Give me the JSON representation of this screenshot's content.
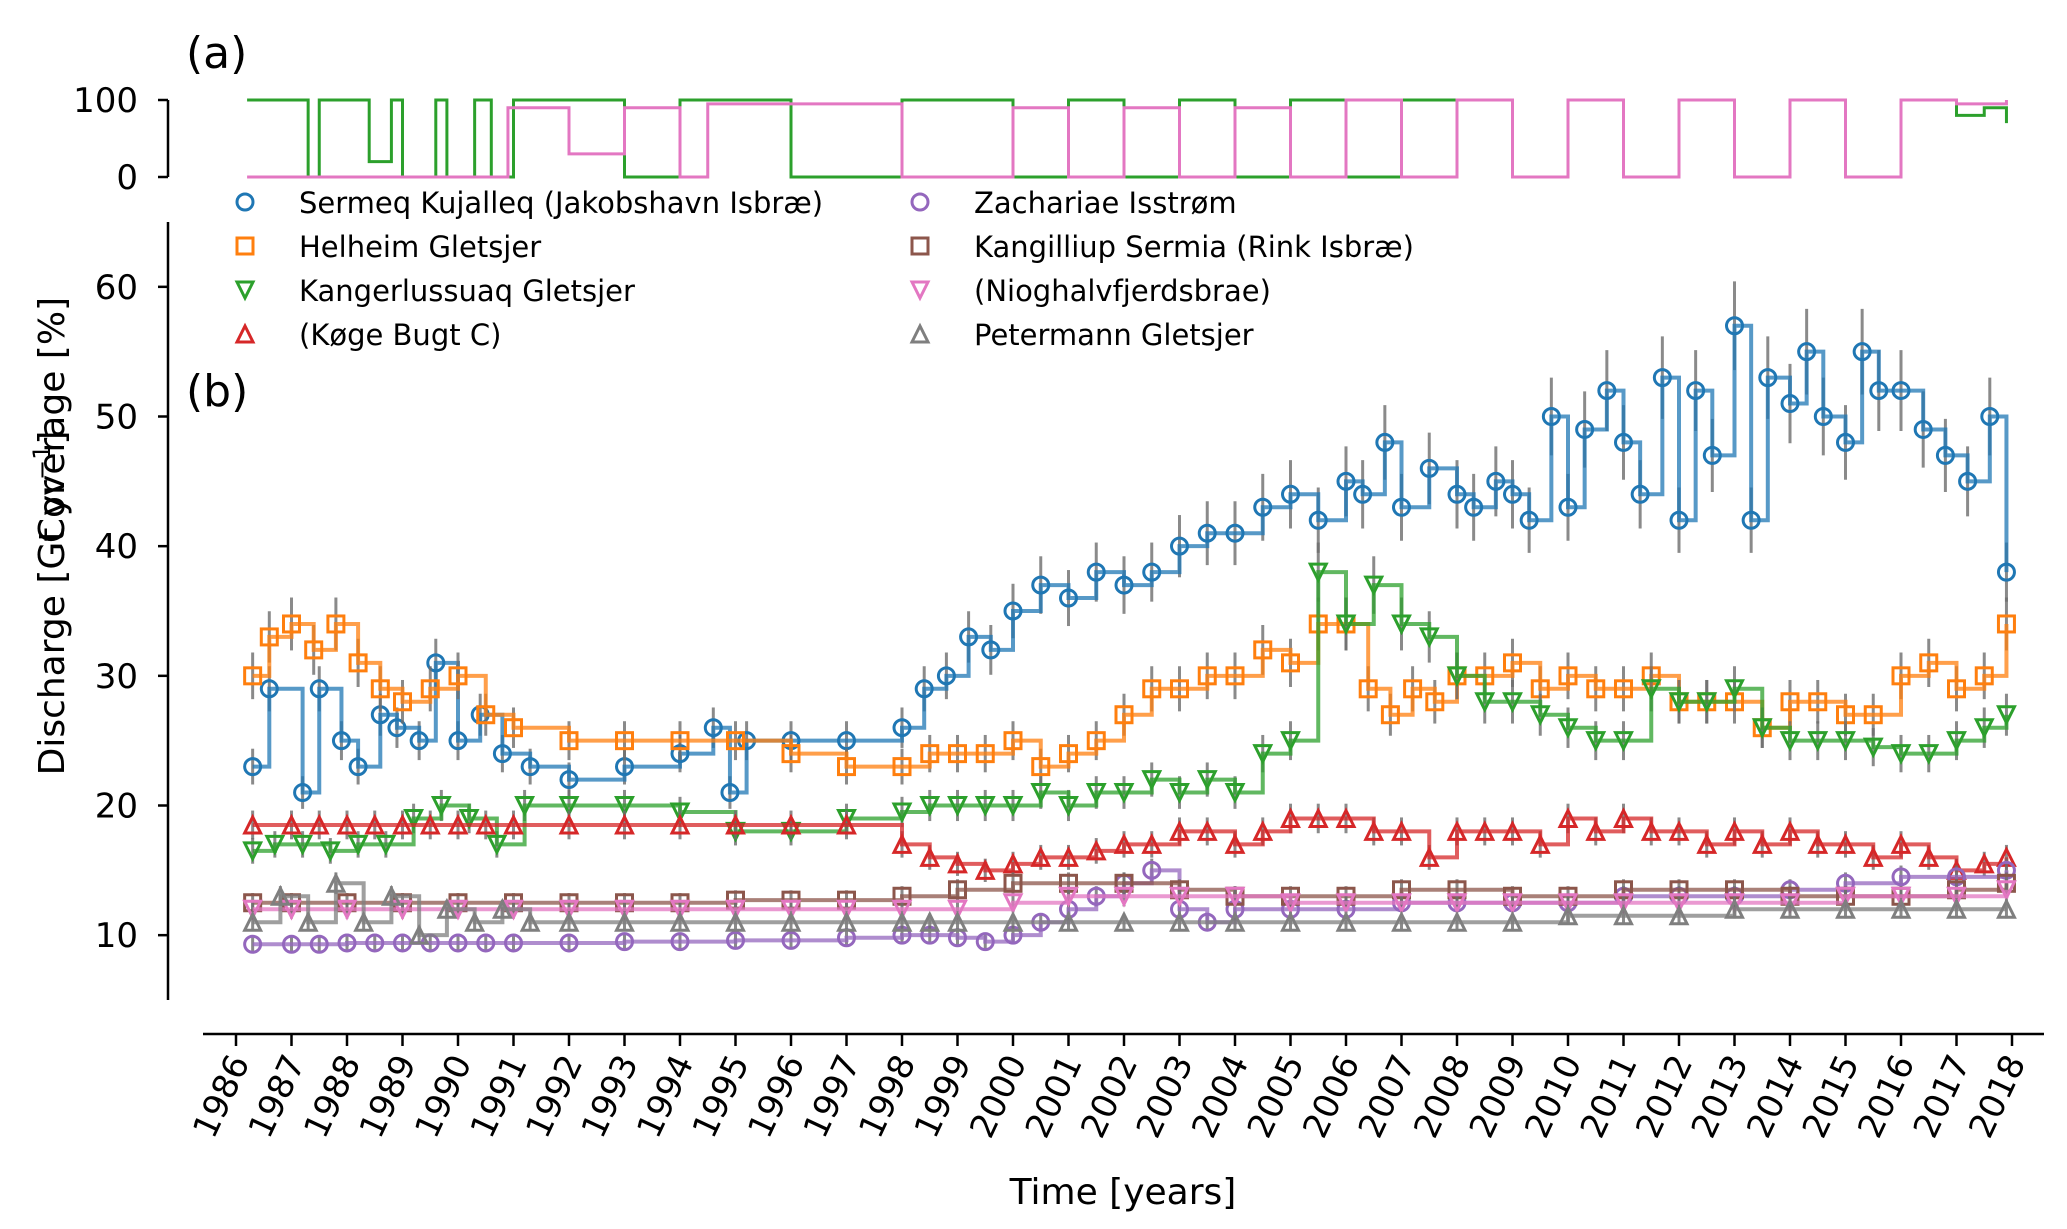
{
  "chart_data": [
    {
      "type": "line",
      "panel_label": "(a)",
      "ylabel": "Coverage [%]",
      "yticks": [
        0,
        100
      ],
      "ylim": [
        0,
        100
      ],
      "xlim": [
        1986,
        2018
      ],
      "series": [
        {
          "name": "Coverage A",
          "color": "#2ca02c",
          "x": [
            1986.2,
            1986.3,
            1987.3,
            1987.5,
            1988.3,
            1988.4,
            1988.8,
            1989.0,
            1989.6,
            1989.8,
            1990.3,
            1990.6,
            1991.0,
            1992.0,
            1993.0,
            1994.0,
            1995.0,
            1996.0,
            1998.0,
            2000.0,
            2001.0,
            2002.0,
            2003.0,
            2004.0,
            2005.0,
            2006.0,
            2007.0,
            2008.0,
            2009.0,
            2010.0,
            2011.0,
            2012.0,
            2013.0,
            2014.0,
            2015.0,
            2016.0,
            2017.0,
            2017.5,
            2017.9
          ],
          "y": [
            100,
            100,
            0,
            100,
            100,
            20,
            100,
            0,
            100,
            0,
            100,
            0,
            100,
            100,
            0,
            100,
            100,
            0,
            100,
            0,
            100,
            0,
            100,
            0,
            100,
            0,
            100,
            100,
            0,
            100,
            0,
            100,
            0,
            100,
            0,
            100,
            80,
            90,
            70
          ]
        },
        {
          "name": "Coverage B",
          "color": "#e377c2",
          "x": [
            1986.2,
            1990.9,
            1992.0,
            1993.0,
            1994.0,
            1994.5,
            1998.0,
            1999.0,
            2000.0,
            2001.0,
            2002.0,
            2003.0,
            2004.0,
            2005.0,
            2006.0,
            2007.0,
            2008.0,
            2009.0,
            2010.0,
            2011.0,
            2012.0,
            2013.0,
            2014.0,
            2015.0,
            2016.0,
            2017.0,
            2017.9
          ],
          "y": [
            0,
            90,
            30,
            90,
            0,
            95,
            0,
            0,
            90,
            0,
            90,
            0,
            90,
            0,
            100,
            0,
            100,
            0,
            100,
            0,
            100,
            0,
            100,
            0,
            100,
            95,
            100
          ]
        }
      ]
    },
    {
      "type": "line",
      "panel_label": "(b)",
      "title": "",
      "xlabel": "Time [years]",
      "ylabel": "Discharge [Gt yr",
      "ylabel_exponent": "−1",
      "ylabel_close": "]",
      "ylim": [
        5,
        65
      ],
      "yticks": [
        10,
        20,
        30,
        40,
        50,
        60
      ],
      "xlim": [
        1986,
        2018
      ],
      "xtick_labels": [
        "1986",
        "1987",
        "1988",
        "1989",
        "1990",
        "1991",
        "1992",
        "1993",
        "1994",
        "1995",
        "1996",
        "1997",
        "1998",
        "1999",
        "2000",
        "2001",
        "2002",
        "2003",
        "2004",
        "2005",
        "2006",
        "2007",
        "2008",
        "2009",
        "2010",
        "2011",
        "2012",
        "2013",
        "2014",
        "2015",
        "2016",
        "2017",
        "2018"
      ],
      "legend_position": "top",
      "series": [
        {
          "name": "Sermeq Kujalleq (Jakobshavn Isbræ)",
          "color": "#1f77b4",
          "marker": "circle",
          "x": [
            1986.3,
            1986.6,
            1987.2,
            1987.5,
            1987.9,
            1988.2,
            1988.6,
            1988.9,
            1989.3,
            1989.6,
            1990.0,
            1990.4,
            1990.8,
            1991.3,
            1992.0,
            1993.0,
            1994.0,
            1994.6,
            1994.9,
            1995.2,
            1996.0,
            1997.0,
            1998.0,
            1998.4,
            1998.8,
            1999.2,
            1999.6,
            2000.0,
            2000.5,
            2001.0,
            2001.5,
            2002.0,
            2002.5,
            2003.0,
            2003.5,
            2004.0,
            2004.5,
            2005.0,
            2005.5,
            2006.0,
            2006.3,
            2006.7,
            2007.0,
            2007.5,
            2008.0,
            2008.3,
            2008.7,
            2009.0,
            2009.3,
            2009.7,
            2010.0,
            2010.3,
            2010.7,
            2011.0,
            2011.3,
            2011.7,
            2012.0,
            2012.3,
            2012.6,
            2013.0,
            2013.3,
            2013.6,
            2014.0,
            2014.3,
            2014.6,
            2015.0,
            2015.3,
            2015.6,
            2016.0,
            2016.4,
            2016.8,
            2017.2,
            2017.6,
            2017.9
          ],
          "y": [
            23,
            29,
            21,
            29,
            25,
            23,
            27,
            26,
            25,
            31,
            25,
            27,
            24,
            23,
            22,
            23,
            24,
            26,
            21,
            25,
            25,
            25,
            26,
            29,
            30,
            33,
            32,
            35,
            37,
            36,
            38,
            37,
            38,
            40,
            41,
            41,
            43,
            44,
            42,
            45,
            44,
            48,
            43,
            46,
            44,
            43,
            45,
            44,
            42,
            50,
            43,
            49,
            52,
            48,
            44,
            53,
            42,
            52,
            47,
            57,
            42,
            53,
            51,
            55,
            50,
            48,
            55,
            52,
            52,
            49,
            47,
            45,
            50,
            38
          ]
        },
        {
          "name": "Helheim Gletsjer",
          "color": "#ff7f0e",
          "marker": "square",
          "x": [
            1986.3,
            1986.6,
            1987.0,
            1987.4,
            1987.8,
            1988.2,
            1988.6,
            1989.0,
            1989.5,
            1990.0,
            1990.5,
            1991.0,
            1992.0,
            1993.0,
            1994.0,
            1995.0,
            1996.0,
            1997.0,
            1998.0,
            1998.5,
            1999.0,
            1999.5,
            2000.0,
            2000.5,
            2001.0,
            2001.5,
            2002.0,
            2002.5,
            2003.0,
            2003.5,
            2004.0,
            2004.5,
            2005.0,
            2005.5,
            2006.0,
            2006.4,
            2006.8,
            2007.2,
            2007.6,
            2008.0,
            2008.5,
            2009.0,
            2009.5,
            2010.0,
            2010.5,
            2011.0,
            2011.5,
            2012.0,
            2012.5,
            2013.0,
            2013.5,
            2014.0,
            2014.5,
            2015.0,
            2015.5,
            2016.0,
            2016.5,
            2017.0,
            2017.5,
            2017.9
          ],
          "y": [
            30,
            33,
            34,
            32,
            34,
            31,
            29,
            28,
            29,
            30,
            27,
            26,
            25,
            25,
            25,
            25,
            24,
            23,
            23,
            24,
            24,
            24,
            25,
            23,
            24,
            25,
            27,
            29,
            29,
            30,
            30,
            32,
            31,
            34,
            34,
            29,
            27,
            29,
            28,
            30,
            30,
            31,
            29,
            30,
            29,
            29,
            30,
            28,
            28,
            28,
            26,
            28,
            28,
            27,
            27,
            30,
            31,
            29,
            30,
            34
          ]
        },
        {
          "name": "Kangerlussuaq Gletsjer",
          "color": "#2ca02c",
          "marker": "triangle-down",
          "x": [
            1986.3,
            1986.7,
            1987.2,
            1987.7,
            1988.2,
            1988.7,
            1989.2,
            1989.7,
            1990.2,
            1990.7,
            1991.2,
            1992.0,
            1993.0,
            1994.0,
            1995.0,
            1996.0,
            1997.0,
            1998.0,
            1998.5,
            1999.0,
            1999.5,
            2000.0,
            2000.5,
            2001.0,
            2001.5,
            2002.0,
            2002.5,
            2003.0,
            2003.5,
            2004.0,
            2004.5,
            2005.0,
            2005.5,
            2006.0,
            2006.5,
            2007.0,
            2007.5,
            2008.0,
            2008.5,
            2009.0,
            2009.5,
            2010.0,
            2010.5,
            2011.0,
            2011.5,
            2012.0,
            2012.5,
            2013.0,
            2013.5,
            2014.0,
            2014.5,
            2015.0,
            2015.5,
            2016.0,
            2016.5,
            2017.0,
            2017.5,
            2017.9
          ],
          "y": [
            16.5,
            17,
            17,
            16.5,
            17,
            17,
            19,
            20,
            19,
            17,
            20,
            20,
            20,
            19.5,
            18,
            18,
            19,
            19.5,
            20,
            20,
            20,
            20,
            21,
            20,
            21,
            21,
            22,
            21,
            22,
            21,
            24,
            25,
            38,
            34,
            37,
            34,
            33,
            30,
            28,
            28,
            27,
            26,
            25,
            25,
            29,
            28,
            28,
            29,
            26,
            25,
            25,
            25,
            24.5,
            24,
            24,
            25,
            26,
            27
          ]
        },
        {
          "name": "(Køge Bugt C)",
          "color": "#d62728",
          "marker": "triangle-up",
          "x": [
            1986.3,
            1987.0,
            1987.5,
            1988.0,
            1988.5,
            1989.0,
            1989.5,
            1990.0,
            1990.5,
            1991.0,
            1992.0,
            1993.0,
            1994.0,
            1995.0,
            1996.0,
            1997.0,
            1998.0,
            1998.5,
            1999.0,
            1999.5,
            2000.0,
            2000.5,
            2001.0,
            2001.5,
            2002.0,
            2002.5,
            2003.0,
            2003.5,
            2004.0,
            2004.5,
            2005.0,
            2005.5,
            2006.0,
            2006.5,
            2007.0,
            2007.5,
            2008.0,
            2008.5,
            2009.0,
            2009.5,
            2010.0,
            2010.5,
            2011.0,
            2011.5,
            2012.0,
            2012.5,
            2013.0,
            2013.5,
            2014.0,
            2014.5,
            2015.0,
            2015.5,
            2016.0,
            2016.5,
            2017.0,
            2017.5,
            2017.9
          ],
          "y": [
            18.5,
            18.5,
            18.5,
            18.5,
            18.5,
            18.5,
            18.5,
            18.5,
            18.5,
            18.5,
            18.5,
            18.5,
            18.5,
            18.5,
            18.5,
            18.5,
            17,
            16,
            15.5,
            15,
            15.5,
            16,
            16,
            16.5,
            17,
            17,
            18,
            18,
            17,
            18,
            19,
            19,
            19,
            18,
            18,
            16,
            18,
            18,
            18,
            17,
            19,
            18,
            19,
            18,
            18,
            17,
            18,
            17,
            18,
            17,
            17,
            16,
            17,
            16,
            15,
            15.5,
            16
          ]
        },
        {
          "name": "Zachariae Isstrøm",
          "color": "#9467bd",
          "marker": "circle",
          "x": [
            1986.3,
            1987.0,
            1987.5,
            1988.0,
            1988.5,
            1989.0,
            1989.5,
            1990.0,
            1990.5,
            1991.0,
            1992.0,
            1993.0,
            1994.0,
            1995.0,
            1996.0,
            1997.0,
            1998.0,
            1998.5,
            1999.0,
            1999.5,
            2000.0,
            2000.5,
            2001.0,
            2001.5,
            2002.0,
            2002.5,
            2003.0,
            2003.5,
            2004.0,
            2005.0,
            2006.0,
            2007.0,
            2008.0,
            2009.0,
            2010.0,
            2011.0,
            2012.0,
            2013.0,
            2014.0,
            2015.0,
            2016.0,
            2017.0,
            2017.9
          ],
          "y": [
            9.3,
            9.3,
            9.3,
            9.4,
            9.4,
            9.4,
            9.4,
            9.4,
            9.4,
            9.4,
            9.4,
            9.5,
            9.5,
            9.6,
            9.6,
            9.8,
            10,
            10,
            9.8,
            9.5,
            10,
            11,
            12,
            13,
            14,
            15,
            12,
            11,
            12,
            12,
            12,
            12.5,
            12.5,
            12.5,
            12.5,
            13,
            13,
            13,
            13.5,
            14,
            14.5,
            14.5,
            15
          ]
        },
        {
          "name": "Kangilliup Sermia (Rink Isbræ)",
          "color": "#8c564b",
          "marker": "square",
          "x": [
            1986.3,
            1987.0,
            1988.0,
            1989.0,
            1990.0,
            1991.0,
            1992.0,
            1993.0,
            1994.0,
            1995.0,
            1996.0,
            1997.0,
            1998.0,
            1999.0,
            2000.0,
            2001.0,
            2002.0,
            2003.0,
            2004.0,
            2005.0,
            2006.0,
            2007.0,
            2008.0,
            2009.0,
            2010.0,
            2011.0,
            2012.0,
            2013.0,
            2014.0,
            2015.0,
            2016.0,
            2017.0,
            2017.9
          ],
          "y": [
            12.5,
            12.5,
            12.5,
            12.5,
            12.5,
            12.5,
            12.5,
            12.5,
            12.5,
            12.7,
            12.7,
            12.7,
            13,
            13.5,
            14,
            14,
            14,
            13.5,
            13,
            13,
            13,
            13.5,
            13.5,
            13,
            13,
            13.5,
            13.5,
            13.5,
            13,
            13,
            13,
            13.5,
            14
          ]
        },
        {
          "name": "(Nioghalvfjerdsbrae)",
          "color": "#e377c2",
          "marker": "triangle-down",
          "x": [
            1986.3,
            1987.0,
            1988.0,
            1989.0,
            1990.0,
            1991.0,
            1992.0,
            1993.0,
            1994.0,
            1995.0,
            1996.0,
            1997.0,
            1998.0,
            1999.0,
            2000.0,
            2001.0,
            2002.0,
            2003.0,
            2004.0,
            2005.0,
            2006.0,
            2007.0,
            2008.0,
            2009.0,
            2010.0,
            2011.0,
            2012.0,
            2013.0,
            2014.0,
            2015.0,
            2016.0,
            2017.0,
            2017.9
          ],
          "y": [
            12,
            12,
            12,
            12,
            12,
            12,
            12,
            12,
            12,
            12,
            12,
            12,
            12,
            12,
            12.5,
            13,
            13,
            13,
            13,
            12.5,
            12.5,
            12.5,
            12.5,
            12.5,
            12.5,
            12.5,
            12.5,
            12.5,
            12.5,
            13,
            13,
            13,
            13.5
          ]
        },
        {
          "name": "Petermann Gletsjer",
          "color": "#7f7f7f",
          "marker": "triangle-up",
          "x": [
            1986.3,
            1986.8,
            1987.3,
            1987.8,
            1988.3,
            1988.8,
            1989.3,
            1989.8,
            1990.3,
            1990.8,
            1991.3,
            1992.0,
            1993.0,
            1994.0,
            1995.0,
            1996.0,
            1997.0,
            1998.0,
            1998.5,
            1999.0,
            2000.0,
            2001.0,
            2002.0,
            2003.0,
            2004.0,
            2005.0,
            2006.0,
            2007.0,
            2008.0,
            2009.0,
            2010.0,
            2011.0,
            2012.0,
            2013.0,
            2014.0,
            2015.0,
            2016.0,
            2017.0,
            2017.9
          ],
          "y": [
            11,
            13,
            11,
            14,
            11,
            13,
            10,
            12,
            11,
            12,
            11,
            11,
            11,
            11,
            11,
            11,
            11,
            11,
            11,
            11,
            11,
            11,
            11,
            11,
            11,
            11,
            11,
            11,
            11,
            11,
            11.5,
            11.5,
            11.5,
            12,
            12,
            12,
            12,
            12,
            12
          ]
        }
      ]
    }
  ]
}
